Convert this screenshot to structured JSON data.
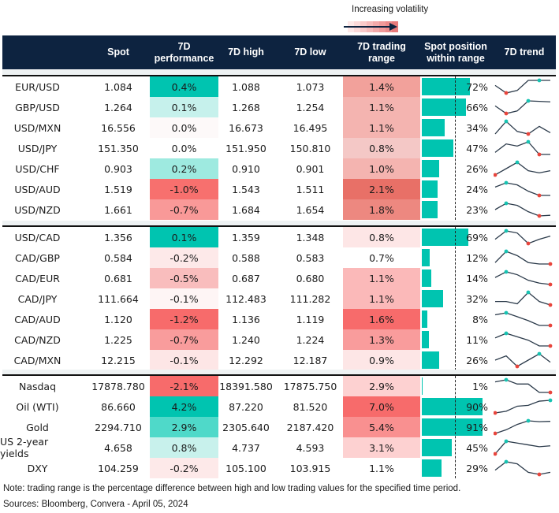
{
  "legend": {
    "label": "Increasing volatility",
    "gradient_colors": [
      "#fde8e8",
      "#fbd9d9",
      "#f9caca",
      "#f6baba",
      "#f3aaaa",
      "#f09a9a",
      "#ec8a8a",
      "#e87a7a"
    ]
  },
  "header": {
    "columns": [
      {
        "key": "spot",
        "label": "Spot"
      },
      {
        "key": "perf",
        "label": "7D performance"
      },
      {
        "key": "high",
        "label": "7D high"
      },
      {
        "key": "low",
        "label": "7D low"
      },
      {
        "key": "range",
        "label": "7D trading range"
      },
      {
        "key": "position",
        "label": "Spot position within range"
      },
      {
        "key": "trend",
        "label": "7D trend"
      }
    ]
  },
  "colors": {
    "header_bg": "#0d2340",
    "bar": "#00c4b0",
    "spark_line": "#2b3a4a",
    "spark_high": "#17c3b2",
    "spark_low": "#e8453c"
  },
  "sections": [
    {
      "rows": [
        {
          "name": "EUR/USD",
          "spot": "1.084",
          "perf": "0.4%",
          "perf_color": "#00c4b0",
          "high": "1.088",
          "low": "1.073",
          "range": "1.4%",
          "range_color": "#f2a19b",
          "position": 72,
          "position_label": "72%",
          "trend": [
            5,
            2,
            3,
            7,
            7,
            7
          ],
          "trend_hi": 4,
          "trend_lo": 1
        },
        {
          "name": "GBP/USD",
          "spot": "1.264",
          "perf": "0.1%",
          "perf_color": "#c6f1ec",
          "high": "1.268",
          "low": "1.254",
          "range": "1.1%",
          "range_color": "#f4b4b0",
          "position": 66,
          "position_label": "66%",
          "trend": [
            4,
            1,
            2,
            6,
            5.8,
            5.6
          ],
          "trend_hi": 3,
          "trend_lo": 1
        },
        {
          "name": "USD/MXN",
          "spot": "16.556",
          "perf": "0.0%",
          "perf_color": "#fdf9f9",
          "high": "16.673",
          "low": "16.495",
          "range": "1.1%",
          "range_color": "#f4b4b0",
          "position": 34,
          "position_label": "34%",
          "trend": [
            2,
            7,
            3,
            2,
            5,
            2.5
          ],
          "trend_hi": 1,
          "trend_lo": 3
        },
        {
          "name": "USD/JPY",
          "spot": "151.350",
          "perf": "0.0%",
          "perf_color": "#ffffff",
          "high": "151.950",
          "low": "150.810",
          "range": "0.8%",
          "range_color": "#f4c8c6",
          "position": 47,
          "position_label": "47%",
          "trend": [
            2,
            6,
            5,
            7,
            1,
            1
          ],
          "trend_hi": 3,
          "trend_lo": 4
        },
        {
          "name": "USD/CHF",
          "spot": "0.903",
          "perf": "0.2%",
          "perf_color": "#9eeae0",
          "high": "0.910",
          "low": "0.901",
          "range": "1.0%",
          "range_color": "#f4b4b0",
          "position": 26,
          "position_label": "26%",
          "trend": [
            1,
            4,
            7,
            3,
            2,
            3
          ],
          "trend_hi": 2,
          "trend_lo": 0
        },
        {
          "name": "USD/AUD",
          "spot": "1.519",
          "perf": "-1.0%",
          "perf_color": "#f7706e",
          "high": "1.543",
          "low": "1.511",
          "range": "2.1%",
          "range_color": "#e87067",
          "position": 24,
          "position_label": "24%",
          "trend": [
            5,
            7,
            6,
            3,
            1,
            1
          ],
          "trend_hi": 1,
          "trend_lo": 4
        },
        {
          "name": "USD/NZD",
          "spot": "1.661",
          "perf": "-0.7%",
          "perf_color": "#f99998",
          "high": "1.684",
          "low": "1.654",
          "range": "1.8%",
          "range_color": "#ed8880",
          "position": 23,
          "position_label": "23%",
          "trend": [
            4,
            7,
            6,
            3,
            1,
            1.3
          ],
          "trend_hi": 1,
          "trend_lo": 4
        }
      ]
    },
    {
      "rows": [
        {
          "name": "USD/CAD",
          "spot": "1.356",
          "perf": "0.1%",
          "perf_color": "#00c4b0",
          "high": "1.359",
          "low": "1.348",
          "range": "0.8%",
          "range_color": "#fde6e6",
          "position": 69,
          "position_label": "69%",
          "trend": [
            3,
            7,
            6,
            1,
            3,
            4.5
          ],
          "trend_hi": 1,
          "trend_lo": 3
        },
        {
          "name": "CAD/GBP",
          "spot": "0.584",
          "perf": "-0.2%",
          "perf_color": "#fde9e9",
          "high": "0.588",
          "low": "0.583",
          "range": "0.7%",
          "range_color": "#ffffff",
          "position": 12,
          "position_label": "12%",
          "trend": [
            3,
            7,
            5.5,
            3,
            2.5,
            2.5
          ],
          "trend_hi": 1,
          "trend_lo": 5
        },
        {
          "name": "CAD/EUR",
          "spot": "0.681",
          "perf": "-0.5%",
          "perf_color": "#f9bdbd",
          "high": "0.687",
          "low": "0.680",
          "range": "1.1%",
          "range_color": "#fbb9b9",
          "position": 14,
          "position_label": "14%",
          "trend": [
            5,
            7,
            6,
            4,
            3,
            2.5
          ],
          "trend_hi": 1,
          "trend_lo": 5
        },
        {
          "name": "CAD/JPY",
          "spot": "111.664",
          "perf": "-0.1%",
          "perf_color": "#fef5f5",
          "high": "112.483",
          "low": "111.282",
          "range": "1.1%",
          "range_color": "#fbb9b9",
          "position": 32,
          "position_label": "32%",
          "trend": [
            3,
            3,
            2,
            7,
            3,
            1.5
          ],
          "trend_hi": 3,
          "trend_lo": 5
        },
        {
          "name": "CAD/AUD",
          "spot": "1.120",
          "perf": "-1.2%",
          "perf_color": "#f76b6b",
          "high": "1.136",
          "low": "1.119",
          "range": "1.6%",
          "range_color": "#f76b6b",
          "position": 8,
          "position_label": "8%",
          "trend": [
            6,
            7,
            5,
            3,
            0.5,
            0.5
          ],
          "trend_hi": 1,
          "trend_lo": 5
        },
        {
          "name": "CAD/NZD",
          "spot": "1.225",
          "perf": "-0.7%",
          "perf_color": "#f99c9c",
          "high": "1.240",
          "low": "1.224",
          "range": "1.3%",
          "range_color": "#f99c9c",
          "position": 11,
          "position_label": "11%",
          "trend": [
            5,
            7,
            5.5,
            4,
            1.5,
            1.5
          ],
          "trend_hi": 1,
          "trend_lo": 5
        },
        {
          "name": "CAD/MXN",
          "spot": "12.215",
          "perf": "-0.1%",
          "perf_color": "#fde6e6",
          "high": "12.292",
          "low": "12.187",
          "range": "0.9%",
          "range_color": "#fde6e6",
          "position": 26,
          "position_label": "26%",
          "trend": [
            3,
            5,
            0,
            3,
            6,
            2
          ],
          "trend_hi": 4,
          "trend_lo": 2
        }
      ]
    },
    {
      "rows": [
        {
          "name": "Nasdaq",
          "spot": "17878.780",
          "perf": "-2.1%",
          "perf_color": "#f76b6b",
          "high": "18391.580",
          "low": "17875.750",
          "range": "2.9%",
          "range_color": "#fdd1d1",
          "position": 1,
          "position_label": "1%",
          "trend": [
            6,
            7,
            5,
            5,
            1,
            1
          ],
          "trend_hi": 1,
          "trend_lo": 5
        },
        {
          "name": "Oil (WTI)",
          "spot": "86.660",
          "perf": "4.2%",
          "perf_color": "#00c4b0",
          "high": "87.220",
          "low": "81.520",
          "range": "7.0%",
          "range_color": "#f76b6b",
          "position": 90,
          "position_label": "90%",
          "trend": [
            0,
            1,
            4,
            4.5,
            7,
            7.5
          ],
          "trend_hi": 5,
          "trend_lo": 0
        },
        {
          "name": "Gold",
          "spot": "2294.710",
          "perf": "2.9%",
          "perf_color": "#4fd9c9",
          "high": "2305.640",
          "low": "2187.420",
          "range": "5.4%",
          "range_color": "#f99090",
          "position": 91,
          "position_label": "91%",
          "trend": [
            0,
            2,
            5,
            7,
            6.5,
            6.7
          ],
          "trend_hi": 3,
          "trend_lo": 0
        },
        {
          "name": "US 2-year yields",
          "spot": "4.658",
          "perf": "0.8%",
          "perf_color": "#c8f1ec",
          "high": "4.737",
          "low": "4.593",
          "range": "3.1%",
          "range_color": "#fdd1d1",
          "position": 45,
          "position_label": "45%",
          "trend": [
            0,
            7,
            6,
            5,
            4,
            4.5
          ],
          "trend_hi": 1,
          "trend_lo": 0
        },
        {
          "name": "DXY",
          "spot": "104.259",
          "perf": "-0.2%",
          "perf_color": "#fde9e9",
          "high": "105.100",
          "low": "103.915",
          "range": "1.1%",
          "range_color": "#ffffff",
          "position": 29,
          "position_label": "29%",
          "trend": [
            3,
            7,
            6,
            2,
            1,
            2
          ],
          "trend_hi": 1,
          "trend_lo": 4
        }
      ]
    }
  ],
  "footer": {
    "note": "Note: trading range is the percentage difference between high and low trading values for the specified time period.",
    "sources": "Sources: Bloomberg, Convera - April 05, 2024"
  }
}
